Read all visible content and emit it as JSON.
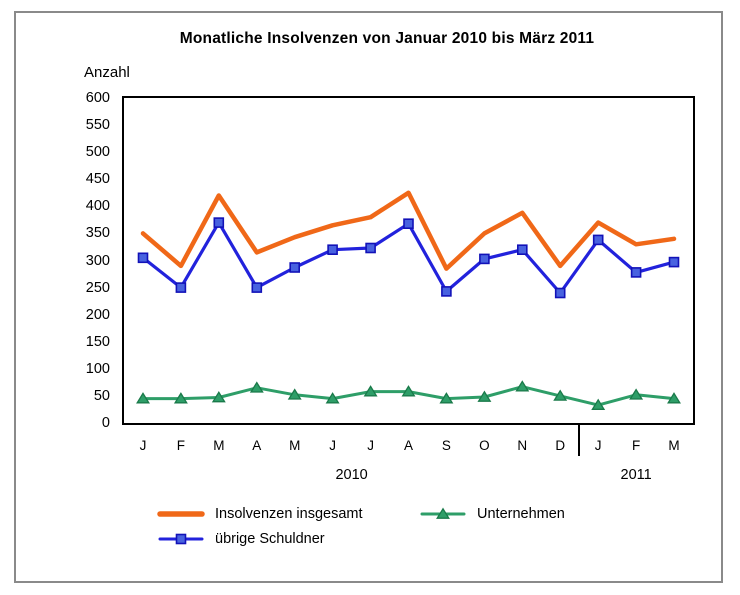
{
  "chart_data": {
    "type": "line",
    "title": "Monatliche Insolvenzen von Januar 2010 bis März 2011",
    "ylabel": "Anzahl",
    "ylim": [
      0,
      600
    ],
    "ytick_step": 50,
    "grid": false,
    "legend_position": "bottom",
    "categories": [
      "J",
      "F",
      "M",
      "A",
      "M",
      "J",
      "J",
      "A",
      "S",
      "O",
      "N",
      "D",
      "J",
      "F",
      "M"
    ],
    "year_groups": [
      {
        "label": "2010",
        "start": 0,
        "end": 11
      },
      {
        "label": "2011",
        "start": 12,
        "end": 14
      }
    ],
    "series": [
      {
        "name": "Insolvenzen insgesamt",
        "color": "#F06818",
        "marker": "none",
        "line_width": 4.5,
        "values": [
          350,
          290,
          420,
          315,
          343,
          365,
          380,
          425,
          285,
          350,
          388,
          290,
          370,
          330,
          340
        ]
      },
      {
        "name": "übrige Schuldner",
        "color": "#2222DC",
        "marker": "square",
        "marker_fill": "#4862E0",
        "marker_stroke": "#1212B8",
        "line_width": 3.2,
        "values": [
          305,
          250,
          370,
          250,
          287,
          320,
          323,
          368,
          243,
          303,
          320,
          240,
          338,
          278,
          297
        ]
      },
      {
        "name": "Unternehmen",
        "color": "#2E9E68",
        "marker": "triangle",
        "marker_fill": "#2E9E68",
        "marker_stroke": "#1A7A4A",
        "line_width": 3,
        "values": [
          45,
          45,
          47,
          65,
          52,
          45,
          58,
          58,
          45,
          48,
          67,
          50,
          33,
          52,
          45
        ]
      }
    ],
    "legend": [
      {
        "series_index": 0,
        "label": "Insolvenzen insgesamt"
      },
      {
        "series_index": 2,
        "label": "Unternehmen"
      },
      {
        "series_index": 1,
        "label": "übrige Schuldner"
      }
    ]
  }
}
